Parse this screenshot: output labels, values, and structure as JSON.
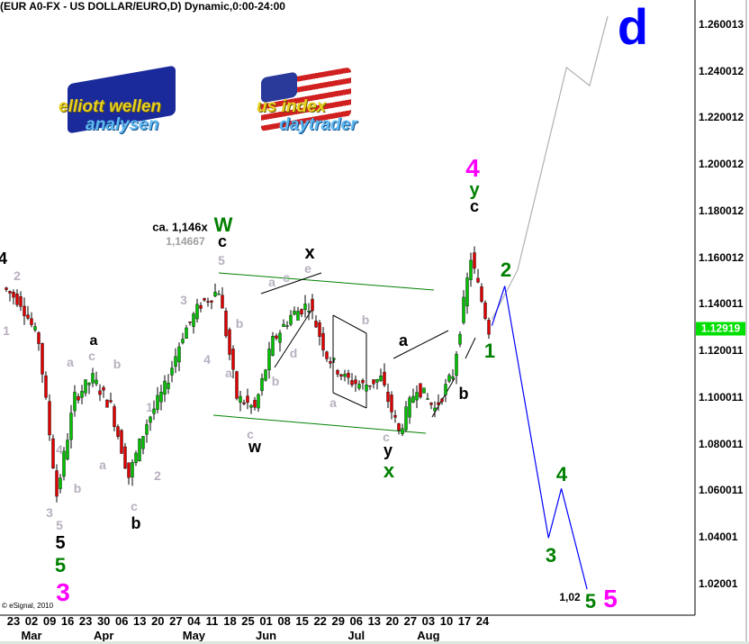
{
  "title": "(EUR A0-FX - US DOLLAR/EURO,D) Dynamic,0:00-24:00",
  "copyright": "© eSignal, 2010",
  "logos": [
    {
      "name": "elliott-wellen-analysen",
      "line1": "elliott wellen",
      "line2": "analysen"
    },
    {
      "name": "us-index-daytrader",
      "line1": "us index",
      "line2": "daytrader"
    }
  ],
  "chart_data": {
    "type": "candlestick",
    "title": "(EUR A0-FX - US DOLLAR/EURO,D) Dynamic,0:00-24:00",
    "ylim": [
      1.008,
      1.268
    ],
    "grid": false,
    "y_ticks": [
      "1.260013",
      "1.240012",
      "1.220012",
      "1.200012",
      "1.180012",
      "1.160012",
      "1.140011",
      "1.120011",
      "1.100011",
      "1.080011",
      "1.060011",
      "1.04001",
      "1.02001"
    ],
    "last_price": "1.12919",
    "last_price_color": "#00e000",
    "x_ticks": [
      "23",
      "02",
      "09",
      "16",
      "23",
      "30",
      "06",
      "13",
      "20",
      "27",
      "04",
      "11",
      "18",
      "25",
      "01",
      "08",
      "15",
      "22",
      "29",
      "06",
      "13",
      "20",
      "27",
      "03",
      "10",
      "17",
      "24"
    ],
    "months": [
      {
        "label": "Mar",
        "tick": 1
      },
      {
        "label": "Apr",
        "tick": 5
      },
      {
        "label": "May",
        "tick": 10
      },
      {
        "label": "Jun",
        "tick": 14
      },
      {
        "label": "Jul",
        "tick": 19
      },
      {
        "label": "Aug",
        "tick": 23
      }
    ],
    "weekly_closes": [
      {
        "week": "2010-02-16",
        "close": 1.147
      },
      {
        "week": "2010-02-23",
        "close": 1.141
      },
      {
        "week": "2010-03-02",
        "close": 1.124
      },
      {
        "week": "2010-03-09",
        "close": 1.058
      },
      {
        "week": "2010-03-16",
        "close": 1.1
      },
      {
        "week": "2010-03-23",
        "close": 1.108
      },
      {
        "week": "2010-03-30",
        "close": 1.096
      },
      {
        "week": "2010-04-06",
        "close": 1.066
      },
      {
        "week": "2010-04-13",
        "close": 1.089
      },
      {
        "week": "2010-04-20",
        "close": 1.104
      },
      {
        "week": "2010-04-27",
        "close": 1.127
      },
      {
        "week": "2010-05-04",
        "close": 1.14
      },
      {
        "week": "2010-05-11",
        "close": 1.146
      },
      {
        "week": "2010-05-18",
        "close": 1.1
      },
      {
        "week": "2010-05-25",
        "close": 1.095
      },
      {
        "week": "2010-06-01",
        "close": 1.124
      },
      {
        "week": "2010-06-08",
        "close": 1.135
      },
      {
        "week": "2010-06-15",
        "close": 1.14
      },
      {
        "week": "2010-06-22",
        "close": 1.118
      },
      {
        "week": "2010-06-29",
        "close": 1.108
      },
      {
        "week": "2010-07-06",
        "close": 1.105
      },
      {
        "week": "2010-07-13",
        "close": 1.108
      },
      {
        "week": "2010-07-20",
        "close": 1.085
      },
      {
        "week": "2010-07-27",
        "close": 1.105
      },
      {
        "week": "2010-08-03",
        "close": 1.095
      },
      {
        "week": "2010-08-10",
        "close": 1.11
      },
      {
        "week": "2010-08-17",
        "close": 1.16
      },
      {
        "week": "2010-08-24",
        "close": 1.129
      }
    ],
    "projections": [
      {
        "name": "alternative-up",
        "color": "#b0b0b0",
        "points": [
          [
            "2010-08-28",
            1.1334
          ],
          [
            "2010-09-07",
            1.1546
          ],
          [
            "2010-09-26",
            1.2415
          ],
          [
            "2010-10-05",
            1.2337
          ],
          [
            "2010-10-12",
            1.2635
          ]
        ]
      },
      {
        "name": "primary-down",
        "color": "#0000ff",
        "points": [
          [
            "2010-08-28",
            1.1307
          ],
          [
            "2010-09-02",
            1.1477
          ],
          [
            "2010-09-19",
            1.0396
          ],
          [
            "2010-09-24",
            1.0608
          ],
          [
            "2010-10-04",
            1.0176
          ]
        ]
      }
    ],
    "trendlines_color": "#008000",
    "annotations": [
      {
        "text": "4",
        "color": "#000000"
      },
      {
        "text": "2",
        "color": "#b8b0c0"
      },
      {
        "text": "1",
        "color": "#b8b0c0"
      },
      {
        "text": "a",
        "color": "#000000"
      },
      {
        "text": "c",
        "color": "#b8b0c0"
      },
      {
        "text": "a",
        "color": "#b8b0c0"
      },
      {
        "text": "b",
        "color": "#b8b0c0"
      },
      {
        "text": "1",
        "color": "#b8b0c0"
      },
      {
        "text": "2",
        "color": "#b8b0c0"
      },
      {
        "text": "a",
        "color": "#b8b0c0"
      },
      {
        "text": "4",
        "color": "#b8b0c0"
      },
      {
        "text": "b",
        "color": "#b8b0c0"
      },
      {
        "text": "3",
        "color": "#b8b0c0"
      },
      {
        "text": "5",
        "color": "#b8b0c0"
      },
      {
        "text": "5",
        "color": "#000000"
      },
      {
        "text": "5",
        "color": "#008000"
      },
      {
        "text": "3",
        "color": "#ff00ff"
      },
      {
        "text": "c",
        "color": "#b8b0c0"
      },
      {
        "text": "b",
        "color": "#000000"
      },
      {
        "text": "3",
        "color": "#b8b0c0"
      },
      {
        "text": "4",
        "color": "#b8b0c0"
      },
      {
        "text": "5",
        "color": "#b8b0c0"
      },
      {
        "text": "b",
        "color": "#b8b0c0"
      },
      {
        "text": "a",
        "color": "#b8b0c0"
      },
      {
        "text": "W",
        "color": "#008000"
      },
      {
        "text": "c",
        "color": "#000000"
      },
      {
        "text": "ca. 1,146x",
        "color": "#000000"
      },
      {
        "text": "1,14667",
        "color": "#a0a0a0"
      },
      {
        "text": "x",
        "color": "#000000"
      },
      {
        "text": "e",
        "color": "#b8b0c0"
      },
      {
        "text": "a",
        "color": "#b8b0c0"
      },
      {
        "text": "c",
        "color": "#b8b0c0"
      },
      {
        "text": "d",
        "color": "#b8b0c0"
      },
      {
        "text": "b",
        "color": "#b8b0c0"
      },
      {
        "text": "c",
        "color": "#b8b0c0"
      },
      {
        "text": "w",
        "color": "#000000"
      },
      {
        "text": "b",
        "color": "#b8b0c0"
      },
      {
        "text": "a",
        "color": "#b8b0c0"
      },
      {
        "text": "a",
        "color": "#000000"
      },
      {
        "text": "c",
        "color": "#b8b0c0"
      },
      {
        "text": "y",
        "color": "#000000"
      },
      {
        "text": "x",
        "color": "#008000"
      },
      {
        "text": "b",
        "color": "#000000"
      },
      {
        "text": "1",
        "color": "#008000"
      },
      {
        "text": "4",
        "color": "#ff00ff"
      },
      {
        "text": "y",
        "color": "#008000"
      },
      {
        "text": "c",
        "color": "#000000"
      },
      {
        "text": "2",
        "color": "#008000"
      },
      {
        "text": "d",
        "color": "#0000ff"
      },
      {
        "text": "4",
        "color": "#008000"
      },
      {
        "text": "3",
        "color": "#008000"
      },
      {
        "text": "1,02",
        "color": "#000000"
      },
      {
        "text": "5",
        "color": "#008000"
      },
      {
        "text": "5",
        "color": "#ff00ff"
      }
    ]
  }
}
